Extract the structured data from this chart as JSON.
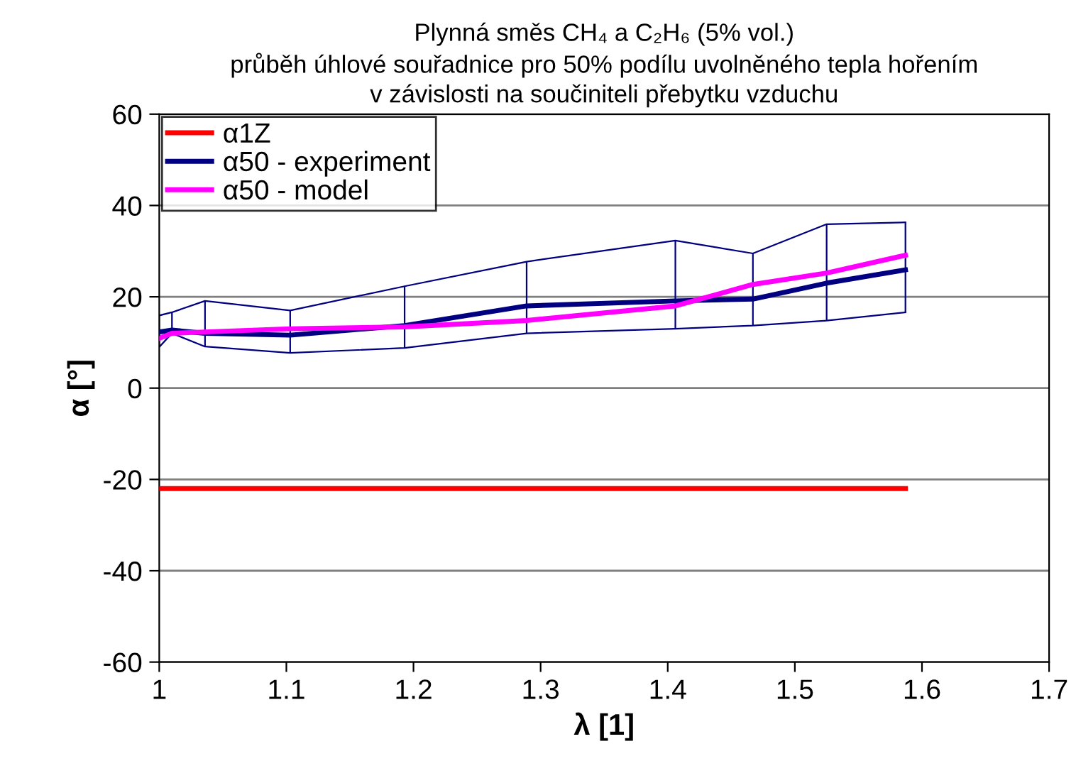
{
  "chart_data": {
    "type": "line",
    "title": "Plynná směs CH₄ a C₂H₆ (5% vol.)\nprůběh úhlové souřadnice pro 50% podílu uvolněného tepla hořením\nv závislosti na součiniteli přebytku vzduchu",
    "xlabel": "λ [1]",
    "ylabel": "α [°]",
    "xlim": [
      1,
      1.7
    ],
    "xticks": [
      1,
      1.1,
      1.2,
      1.3,
      1.4,
      1.5,
      1.6,
      1.7
    ],
    "ylim": [
      -60,
      60
    ],
    "yticks": [
      -60,
      -40,
      -20,
      0,
      20,
      40,
      60
    ],
    "grid": "y",
    "legend": "top left",
    "marker": "none",
    "line_style": "solid",
    "series": [
      {
        "name": "α1Z",
        "color": "#ff0000",
        "x": [
          1,
          1.587
        ],
        "values": [
          -22,
          -22
        ]
      },
      {
        "name": "α50 - experiment",
        "color": "#000080",
        "x": [
          1,
          1.01,
          1.036,
          1.103,
          1.193,
          1.289,
          1.406,
          1.467,
          1.525,
          1.587
        ],
        "values": [
          12.3,
          12.7,
          12,
          11.6,
          13.7,
          18,
          19.1,
          19.5,
          23,
          25.9
        ],
        "errors": [
          [
            9,
            15.9
          ],
          [
            12,
            16.6
          ],
          [
            9.1,
            19.1
          ],
          [
            7.7,
            17
          ],
          [
            8.8,
            22.3
          ],
          [
            12,
            27.7
          ],
          [
            13,
            32.3
          ],
          [
            13.7,
            29.5
          ],
          [
            14.8,
            35.9
          ],
          [
            16.6,
            36.3
          ]
        ]
      },
      {
        "color": "#000080",
        "x": [
          1,
          1.01,
          1.036,
          1.103,
          1.193,
          1.289,
          1.406,
          1.467,
          1.525,
          1.587
        ],
        "values": [
          15.9,
          16.6,
          19.1,
          17,
          22.3,
          27.7,
          32.3,
          29.5,
          35.9,
          36.3
        ]
      },
      {
        "color": "#000080",
        "x": [
          1,
          1.01,
          1.036,
          1.103,
          1.193,
          1.289,
          1.406,
          1.467,
          1.525,
          1.587
        ],
        "values": [
          9,
          12,
          9.1,
          7.7,
          8.8,
          12,
          13,
          13.7,
          14.8,
          16.6
        ]
      },
      {
        "name": "α50 - model",
        "color": "#ff00ff",
        "x": [
          1,
          1.01,
          1.036,
          1.103,
          1.193,
          1.289,
          1.406,
          1.467,
          1.525,
          1.587
        ],
        "values": [
          10.9,
          12,
          12.3,
          13,
          13.4,
          14.8,
          18,
          22.7,
          25.2,
          29.1
        ]
      }
    ]
  }
}
